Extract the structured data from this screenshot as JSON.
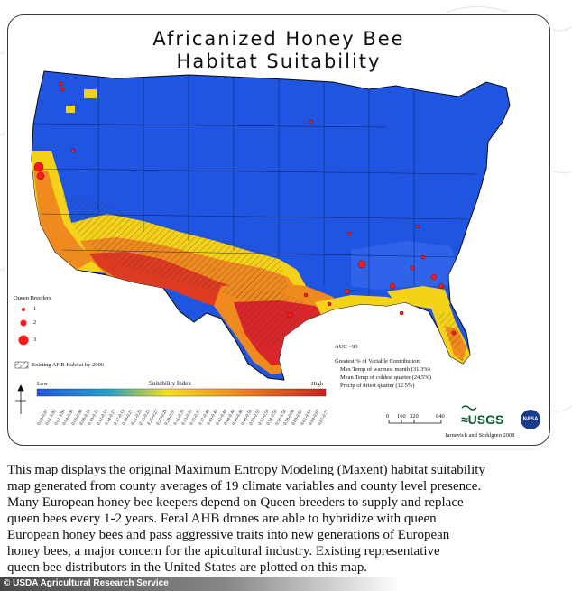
{
  "map": {
    "title_line1": "Africanized Honey Bee",
    "title_line2": "Habitat Suitability",
    "legend": {
      "queen_breeders_title": "Queen Breeders",
      "queen_breeders_levels": [
        "1",
        "2",
        "3"
      ],
      "existing_habitat_label": "Existing AHB Habitat by 2006",
      "suitability_title": "Suitability Index",
      "low_label": "Low",
      "high_label": "High",
      "ticks": [
        "0.00-0.01",
        "0.01-0.02",
        "0.02-0.04",
        "0.04-0.06",
        "0.06-0.08",
        "0.08-0.10",
        "0.10-0.12",
        "0.12-0.14",
        "0.14-0.17",
        "0.17-0.19",
        "0.19-0.21",
        "0.21-0.23",
        "0.23-0.25",
        "0.25-0.27",
        "0.27-0.29",
        "0.29-0.31",
        "0.31-0.33",
        "0.33-0.35",
        "0.35-0.37",
        "0.37-0.40",
        "0.40-0.42",
        "0.42-0.44",
        "0.44-0.46",
        "0.46-0.48",
        "0.48-0.50",
        "0.50-0.52",
        "0.52-0.54",
        "0.54-0.56",
        "0.56-0.58",
        "0.58-0.60",
        "0.60-0.62",
        "0.62-0.64",
        "0.64-0.67",
        "0.67-0.71"
      ],
      "color_low": "#1f55e0",
      "color_high": "#d8262a"
    },
    "stats": {
      "auc": "AUC =95",
      "contribution_title": "Greatest % of Variable Contribution:",
      "line1": "Max Temp of warmest month (31.3%)",
      "line2": "Mean Temp of coldest quarter (24.5%)",
      "line3": "Precip of driest quarter (12.5%)"
    },
    "scale_labels": [
      "0",
      "160",
      "320",
      "640"
    ],
    "credit_authors": "Jarnevich and Stohlgren 2008",
    "usgs_label": "≈USGS",
    "nasa_label": "NASA"
  },
  "description": {
    "lines": [
      "This map displays the original Maximum Entropy Modeling (Maxent) habitat suitability",
      "map generated from county averages of 19 climate variables and county level presence.",
      "Many European honey bee keepers depend on Queen breeders to supply and replace",
      "queen bees every 1-2 years.  Feral AHB drones are able to hybridize with queen",
      "European honey bees and pass aggressive traits into new generations of European",
      "honey bees, a major concern for the apicultural industry.  Existing representative",
      "queen bee distributors in the United States are plotted on this map."
    ]
  },
  "credit": {
    "text": "© USDA Agricultural Research Service"
  },
  "colors": {
    "ocean": "#ffffff",
    "blue": "#1f55e0",
    "yellow": "#f5d21a",
    "orange": "#ef8a1f",
    "red": "#d8262a"
  }
}
